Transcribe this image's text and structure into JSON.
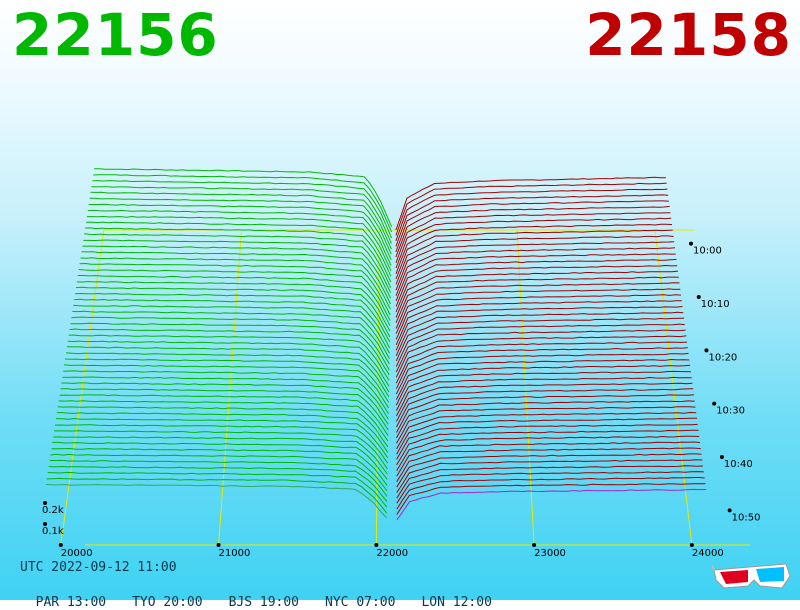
{
  "header": {
    "bid": "22156",
    "ask": "22158",
    "bid_color": "#00b800",
    "ask_color": "#c00000"
  },
  "footer": {
    "utc": "UTC 2022-09-12 11:00",
    "zones": [
      "PAR 13:00",
      "TYO 20:00",
      "BJS 19:00",
      "NYC 07:00",
      "LON 12:00"
    ]
  },
  "icon": "3d-glasses-icon",
  "chart_data": {
    "type": "area",
    "view": "3d-depth-of-market",
    "x_ticks": [
      "20000",
      "21000",
      "22000",
      "23000",
      "24000"
    ],
    "x_range": [
      19900,
      24400
    ],
    "z_labels": [
      "0.2k",
      "0.1k"
    ],
    "z_values": [
      200,
      100
    ],
    "time_labels": [
      "10:00",
      "10:10",
      "10:20",
      "10:30",
      "10:40",
      "10:50"
    ],
    "bid_color": "#00b800",
    "ask_color": "#a00000",
    "grid_color": "#e8e800",
    "latest_bid_color": "#33aa55",
    "latest_ask_color": "#aa22cc",
    "series": [
      {
        "name": "bid",
        "depth": [
          [
            19930,
            230
          ],
          [
            20500,
            226
          ],
          [
            21000,
            222
          ],
          [
            21500,
            218
          ],
          [
            21900,
            200
          ],
          [
            22000,
            120
          ],
          [
            22100,
            0
          ]
        ]
      },
      {
        "name": "ask",
        "depth": [
          [
            22120,
            0
          ],
          [
            22200,
            120
          ],
          [
            22400,
            175
          ],
          [
            22800,
            185
          ],
          [
            23500,
            192
          ],
          [
            24100,
            198
          ]
        ]
      }
    ],
    "snapshots": 54
  }
}
